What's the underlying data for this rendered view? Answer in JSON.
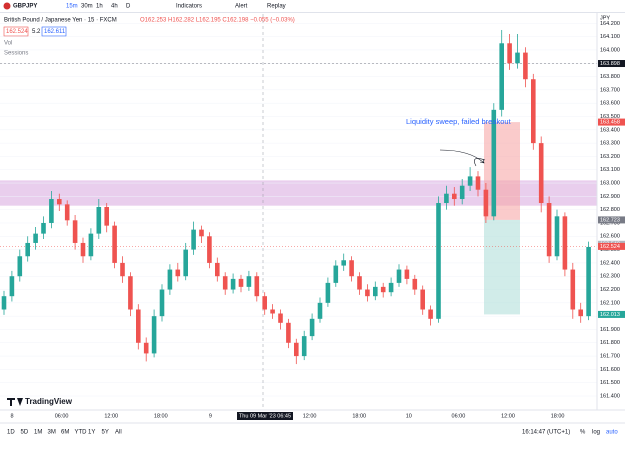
{
  "toolbar": {
    "symbol": "GBPJPY",
    "intervals": [
      "15m",
      "30m",
      "1h",
      "4h",
      "D"
    ],
    "indicators": "Indicators",
    "alert": "Alert",
    "replay": "Replay"
  },
  "legend": {
    "title": "British Pound / Japanese Yen · 15 · FXCM",
    "ohlc": "O162.253 H162.282 L162.195 C162.198 −0.055 (−0.03%)",
    "sell": "162.524",
    "spread": "5.2",
    "buy": "162.611",
    "vol": "Vol",
    "sessions": "Sessions"
  },
  "watermark": "TradingView",
  "chart_data": {
    "type": "candlestick",
    "currency": "JPY",
    "annotation": "Liquidity sweep, failed breakout",
    "up_color": "#26a69a",
    "down_color": "#ef5350",
    "ylim": [
      161.31,
      164.27
    ],
    "yticks": [
      {
        "value": 161.4,
        "label": "161.400"
      },
      {
        "value": 161.5,
        "label": "161.500"
      },
      {
        "value": 161.6,
        "label": "161.600"
      },
      {
        "value": 161.7,
        "label": "161.700"
      },
      {
        "value": 161.8,
        "label": "161.800"
      },
      {
        "value": 161.9,
        "label": "161.900"
      },
      {
        "value": 162,
        "label": "162.000"
      },
      {
        "value": 162.1,
        "label": "162.100"
      },
      {
        "value": 162.2,
        "label": "162.200"
      },
      {
        "value": 162.3,
        "label": "162.300"
      },
      {
        "value": 162.4,
        "label": "162.400"
      },
      {
        "value": 162.5,
        "label": "162.500"
      },
      {
        "value": 162.6,
        "label": "162.600"
      },
      {
        "value": 162.7,
        "label": "162.700"
      },
      {
        "value": 162.8,
        "label": "162.800"
      },
      {
        "value": 162.9,
        "label": "162.900"
      },
      {
        "value": 163,
        "label": "163.000"
      },
      {
        "value": 163.1,
        "label": "163.100"
      },
      {
        "value": 163.2,
        "label": "163.200"
      },
      {
        "value": 163.3,
        "label": "163.300"
      },
      {
        "value": 163.4,
        "label": "163.400"
      },
      {
        "value": 163.5,
        "label": "163.500"
      },
      {
        "value": 163.6,
        "label": "163.600"
      },
      {
        "value": 163.7,
        "label": "163.700"
      },
      {
        "value": 163.8,
        "label": "163.800"
      },
      {
        "value": 163.9,
        "label": "163.900"
      },
      {
        "value": 164,
        "label": "164.000"
      },
      {
        "value": 164.1,
        "label": "164.100"
      },
      {
        "value": 164.2,
        "label": "164.200"
      }
    ],
    "xtick_labels": [
      "8",
      "06:00",
      "12:00",
      "18:00",
      "9",
      "",
      "12:00",
      "18:00",
      "10",
      "06:00",
      "12:00",
      "18:00"
    ],
    "crosshair_label": "Thu 09 Mar '23  06:45",
    "zone": [
      162.83,
      163.02
    ],
    "zone_color": "#e1bee7",
    "price_labels": [
      {
        "value": 163.898,
        "label": "163.898",
        "color": "#131722"
      },
      {
        "value": 163.458,
        "label": "163.458",
        "color": "#ef5350"
      },
      {
        "value": 162.723,
        "label": "162.723",
        "color": "#787b86"
      },
      {
        "value": 162.54,
        "label": "162.540",
        "color": "#b2b5be"
      },
      {
        "value": 162.524,
        "label": "162.524",
        "color": "#ef5350"
      },
      {
        "value": 162.013,
        "label": "162.013",
        "color": "#26a69a"
      }
    ],
    "open": [
      162.05,
      162.15,
      162.3,
      162.45,
      162.55,
      162.62,
      162.7,
      162.88,
      162.84,
      162.72,
      162.55,
      162.45,
      162.62,
      162.82,
      162.68,
      162.4,
      162.3,
      162.05,
      161.8,
      161.72,
      162,
      162.2,
      162.35,
      162.3,
      162.5,
      162.65,
      162.6,
      162.4,
      162.3,
      162.2,
      162.28,
      162.22,
      162.3,
      162.15,
      162.05,
      162.02,
      161.95,
      161.8,
      161.7,
      161.85,
      161.98,
      162.1,
      162.25,
      162.38,
      162.42,
      162.3,
      162.2,
      162.15,
      162.22,
      162.18,
      162.25,
      162.35,
      162.28,
      162.2,
      162.05,
      161.98,
      162.85,
      162.92,
      162.88,
      162.98,
      163.05,
      162.95,
      162.75,
      163.55,
      164.05,
      163.9,
      163.98,
      163.78,
      163.3,
      162.85,
      162.45,
      162.75,
      162.35,
      162.05,
      162
    ],
    "high": [
      162.19,
      162.34,
      162.5,
      162.6,
      162.67,
      162.75,
      162.94,
      162.92,
      162.87,
      162.76,
      162.59,
      162.66,
      162.88,
      162.85,
      162.71,
      162.45,
      162.33,
      162.09,
      161.84,
      162.05,
      162.24,
      162.39,
      162.4,
      162.55,
      162.71,
      162.68,
      162.63,
      162.44,
      162.33,
      162.32,
      162.31,
      162.34,
      162.33,
      162.18,
      162.09,
      162.05,
      161.98,
      161.83,
      161.89,
      162.02,
      162.14,
      162.29,
      162.42,
      162.47,
      162.45,
      162.33,
      162.24,
      162.26,
      162.25,
      162.29,
      162.39,
      162.38,
      162.31,
      162.23,
      162.08,
      162.9,
      162.98,
      162.97,
      163.03,
      163.12,
      163.09,
      163,
      163.6,
      164.15,
      164.12,
      164.12,
      164.02,
      163.82,
      163.35,
      162.9,
      162.8,
      162.78,
      162.4,
      162.1,
      162.56
    ],
    "low": [
      162.01,
      162.11,
      162.26,
      162.41,
      162.5,
      162.58,
      162.66,
      162.79,
      162.68,
      162.5,
      162.4,
      162.42,
      162.58,
      162.63,
      162.36,
      162.25,
      162,
      161.75,
      161.66,
      161.69,
      161.96,
      162.16,
      162.26,
      162.27,
      162.46,
      162.55,
      162.36,
      162.26,
      162.16,
      162.17,
      162.18,
      162.19,
      162.11,
      162.01,
      161.98,
      161.9,
      161.76,
      161.64,
      161.67,
      161.82,
      161.95,
      162.07,
      162.22,
      162.34,
      162.26,
      162.16,
      162.11,
      162.12,
      162.14,
      162.15,
      162.22,
      162.24,
      162.16,
      162.01,
      161.93,
      161.95,
      162.8,
      162.83,
      162.84,
      162.94,
      162.9,
      162.7,
      162.72,
      163.5,
      163.85,
      163.86,
      163.72,
      163.25,
      162.78,
      162.4,
      162.42,
      162.3,
      161.98,
      161.95,
      161.97
    ],
    "close": [
      162.15,
      162.3,
      162.45,
      162.55,
      162.62,
      162.7,
      162.88,
      162.84,
      162.72,
      162.55,
      162.45,
      162.62,
      162.82,
      162.68,
      162.4,
      162.3,
      162.05,
      161.8,
      161.72,
      162,
      162.2,
      162.35,
      162.3,
      162.5,
      162.65,
      162.6,
      162.4,
      162.3,
      162.2,
      162.28,
      162.22,
      162.3,
      162.15,
      162.05,
      162.02,
      161.95,
      161.8,
      161.7,
      161.85,
      161.98,
      162.1,
      162.25,
      162.38,
      162.42,
      162.3,
      162.2,
      162.15,
      162.22,
      162.18,
      162.25,
      162.35,
      162.28,
      162.2,
      162.05,
      161.98,
      162.85,
      162.92,
      162.88,
      162.98,
      163.05,
      162.95,
      162.75,
      163.55,
      164.05,
      163.9,
      163.98,
      163.78,
      163.3,
      162.85,
      162.45,
      162.75,
      162.35,
      162.05,
      162,
      162.52
    ]
  },
  "bottom_bar": {
    "ranges": [
      "1D",
      "5D",
      "1M",
      "3M",
      "6M",
      "YTD",
      "1Y",
      "5Y",
      "All"
    ],
    "clock": "16:14:47 (UTC+1)",
    "percent": "%",
    "log": "log",
    "auto": "auto"
  }
}
